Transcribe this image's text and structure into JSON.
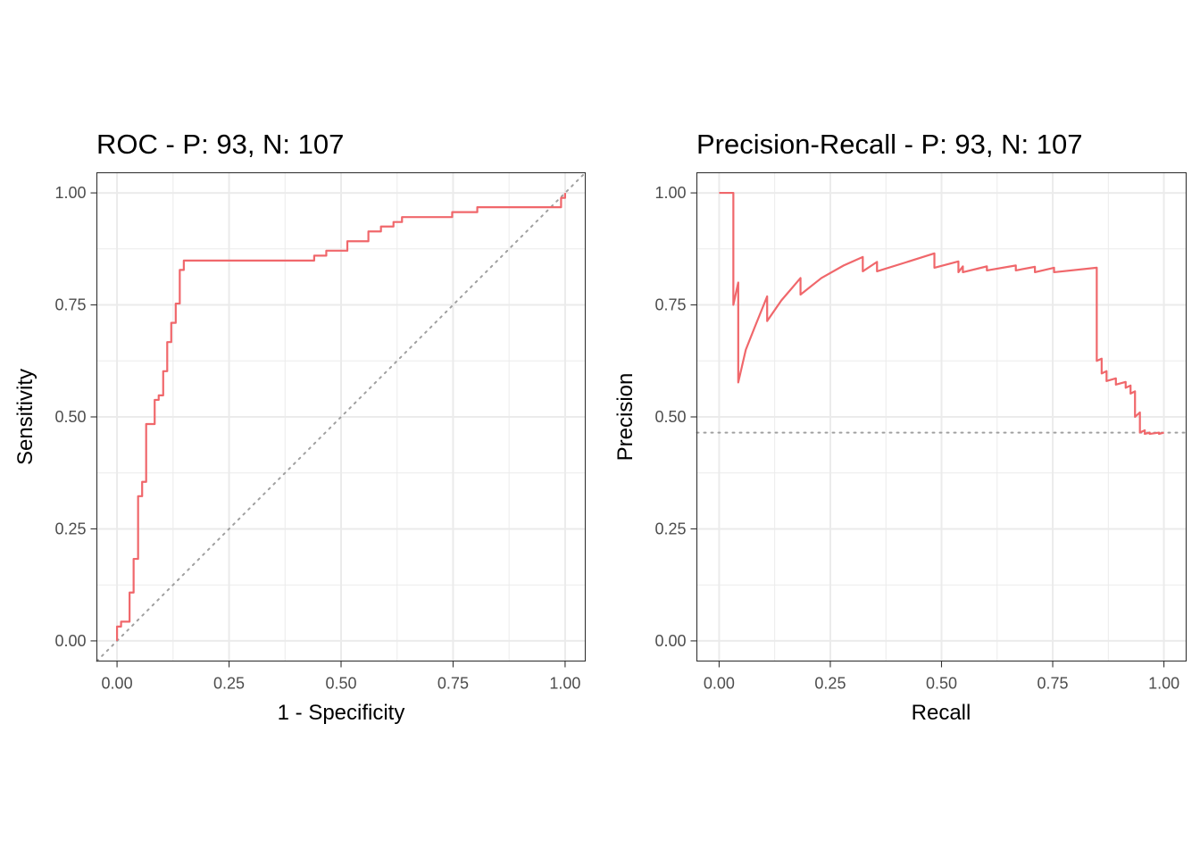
{
  "colors": {
    "curve": "#f0676b",
    "reference": "#a0a0a0"
  },
  "chart_data": [
    {
      "type": "line",
      "title": "ROC - P: 93, N: 107",
      "xlabel": "1 - Specificity",
      "ylabel": "Sensitivity",
      "xlim": [
        -0.045,
        1.045
      ],
      "ylim": [
        -0.045,
        1.045
      ],
      "xticks": [
        0,
        0.25,
        0.5,
        0.75,
        1
      ],
      "xtick_labels": [
        "0.00",
        "0.25",
        "0.50",
        "0.75",
        "1.00"
      ],
      "yticks": [
        0,
        0.25,
        0.5,
        0.75,
        1
      ],
      "ytick_labels": [
        "0.00",
        "0.25",
        "0.50",
        "0.75",
        "1.00"
      ],
      "grid": true,
      "reference_line": {
        "x": [
          -0.045,
          1.045
        ],
        "y": [
          -0.045,
          1.045
        ]
      },
      "series": [
        {
          "x": [
            0,
            0,
            0.009,
            0.009,
            0.028,
            0.028,
            0.037,
            0.037,
            0.047,
            0.047,
            0.056,
            0.056,
            0.065,
            0.065,
            0.084,
            0.084,
            0.093,
            0.093,
            0.103,
            0.103,
            0.112,
            0.112,
            0.121,
            0.121,
            0.131,
            0.131,
            0.14,
            0.14,
            0.149,
            0.149,
            0.44,
            0.44,
            0.467,
            0.467,
            0.514,
            0.514,
            0.561,
            0.561,
            0.589,
            0.589,
            0.617,
            0.617,
            0.636,
            0.636,
            0.748,
            0.748,
            0.804,
            0.804,
            0.991,
            0.991,
            1,
            1
          ],
          "y": [
            0,
            0.032,
            0.032,
            0.043,
            0.043,
            0.108,
            0.108,
            0.183,
            0.183,
            0.323,
            0.323,
            0.355,
            0.355,
            0.484,
            0.484,
            0.538,
            0.538,
            0.548,
            0.548,
            0.602,
            0.602,
            0.667,
            0.667,
            0.71,
            0.71,
            0.753,
            0.753,
            0.828,
            0.828,
            0.849,
            0.849,
            0.86,
            0.86,
            0.871,
            0.871,
            0.892,
            0.892,
            0.914,
            0.914,
            0.925,
            0.925,
            0.935,
            0.935,
            0.946,
            0.946,
            0.957,
            0.957,
            0.968,
            0.968,
            0.989,
            0.989,
            1
          ]
        }
      ]
    },
    {
      "type": "line",
      "title": "Precision-Recall - P: 93, N: 107",
      "xlabel": "Recall",
      "ylabel": "Precision",
      "xlim": [
        -0.05,
        1.05
      ],
      "ylim": [
        -0.045,
        1.045
      ],
      "xticks": [
        0,
        0.25,
        0.5,
        0.75,
        1
      ],
      "xtick_labels": [
        "0.00",
        "0.25",
        "0.50",
        "0.75",
        "1.00"
      ],
      "yticks": [
        0,
        0.25,
        0.5,
        0.75,
        1
      ],
      "ytick_labels": [
        "0.00",
        "0.25",
        "0.50",
        "0.75",
        "1.00"
      ],
      "grid": true,
      "baseline": 0.465,
      "series": [
        {
          "x": [
            0,
            0.032,
            0.032,
            0.043,
            0.043,
            0.06,
            0.08,
            0.108,
            0.108,
            0.14,
            0.183,
            0.183,
            0.23,
            0.28,
            0.323,
            0.323,
            0.355,
            0.355,
            0.42,
            0.484,
            0.484,
            0.538,
            0.538,
            0.548,
            0.548,
            0.602,
            0.602,
            0.667,
            0.667,
            0.71,
            0.71,
            0.753,
            0.753,
            0.849,
            0.849,
            0.86,
            0.86,
            0.871,
            0.871,
            0.892,
            0.892,
            0.914,
            0.914,
            0.925,
            0.925,
            0.935,
            0.935,
            0.946,
            0.946,
            0.957,
            0.957,
            0.968,
            0.968,
            0.989,
            0.989,
            1
          ],
          "y": [
            1,
            1,
            0.75,
            0.8,
            0.577,
            0.65,
            0.7,
            0.769,
            0.714,
            0.76,
            0.81,
            0.773,
            0.81,
            0.838,
            0.857,
            0.825,
            0.846,
            0.825,
            0.845,
            0.865,
            0.833,
            0.847,
            0.823,
            0.836,
            0.823,
            0.836,
            0.827,
            0.838,
            0.827,
            0.835,
            0.823,
            0.833,
            0.823,
            0.833,
            0.625,
            0.63,
            0.597,
            0.602,
            0.58,
            0.586,
            0.572,
            0.578,
            0.565,
            0.57,
            0.552,
            0.557,
            0.5,
            0.51,
            0.465,
            0.47,
            0.462,
            0.465,
            0.462,
            0.465,
            0.462,
            0.465
          ]
        }
      ]
    }
  ]
}
